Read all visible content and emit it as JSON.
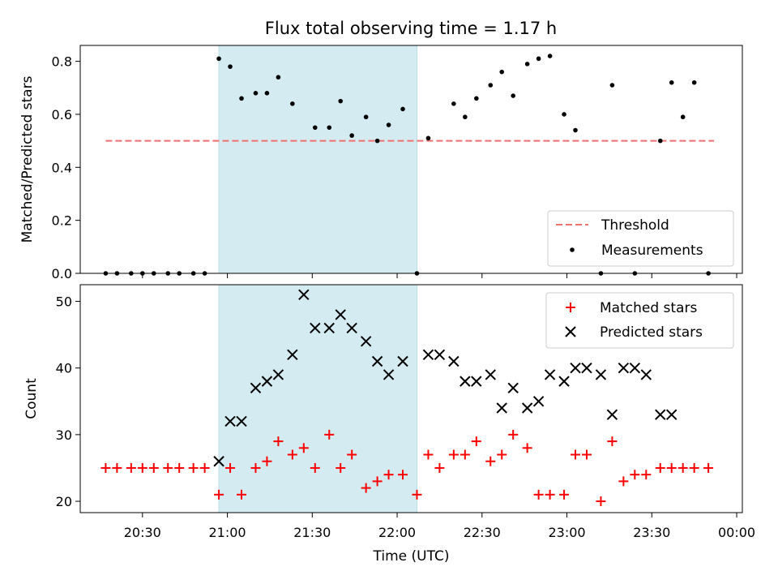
{
  "chart_data": [
    {
      "type": "scatter",
      "title": "Flux total observing time = 1.17 h",
      "xlabel": "",
      "ylabel": "Matched/Predicted stars",
      "ylim": [
        0,
        0.86
      ],
      "yticks": [
        "0.0",
        "0.2",
        "0.4",
        "0.6",
        "0.8"
      ],
      "legend_placement": "lower-right",
      "highlight_span": {
        "start": "20:57",
        "end": "22:07",
        "color": "#d4ebf1"
      },
      "threshold": {
        "name": "Threshold",
        "value": 0.5,
        "x_start": "20:17",
        "x_end": "23:52",
        "color": "#f07070"
      },
      "series": [
        {
          "name": "Measurements",
          "color": "#000000",
          "marker": "dot",
          "x": [
            "20:17",
            "20:21",
            "20:26",
            "20:30",
            "20:34",
            "20:39",
            "20:43",
            "20:48",
            "20:52",
            "20:57",
            "21:01",
            "21:05",
            "21:10",
            "21:14",
            "21:18",
            "21:23",
            "21:31",
            "21:36",
            "21:40",
            "21:44",
            "21:49",
            "21:53",
            "21:57",
            "22:02",
            "22:07",
            "22:11",
            "22:20",
            "22:24",
            "22:28",
            "22:33",
            "22:37",
            "22:41",
            "22:46",
            "22:50",
            "22:54",
            "22:59",
            "23:03",
            "23:12",
            "23:16",
            "23:24",
            "23:33",
            "23:37",
            "23:41",
            "23:45",
            "23:50"
          ],
          "y": [
            0,
            0,
            0,
            0,
            0,
            0,
            0,
            0,
            0,
            0.81,
            0.78,
            0.66,
            0.68,
            0.68,
            0.74,
            0.64,
            0.55,
            0.55,
            0.65,
            0.52,
            0.59,
            0.5,
            0.56,
            0.62,
            0,
            0.51,
            0.64,
            0.59,
            0.66,
            0.71,
            0.76,
            0.67,
            0.79,
            0.81,
            0.82,
            0.6,
            0.54,
            0,
            0.71,
            0,
            0.5,
            0.72,
            0.59,
            0.72,
            0
          ]
        }
      ]
    },
    {
      "type": "scatter",
      "xlabel": "Time (UTC)",
      "ylabel": "Count",
      "ylim": [
        18.3,
        52.5
      ],
      "yticks": [
        "20",
        "30",
        "40",
        "50"
      ],
      "xlim": [
        "20:08",
        "00:02"
      ],
      "xticks": [
        "20:30",
        "21:00",
        "21:30",
        "22:00",
        "22:30",
        "23:00",
        "23:30",
        "00:00"
      ],
      "legend_placement": "upper-right",
      "highlight_span": {
        "start": "20:57",
        "end": "22:07",
        "color": "#d4ebf1"
      },
      "series": [
        {
          "name": "Matched stars",
          "color": "#ff0000",
          "marker": "plus",
          "x": [
            "20:17",
            "20:21",
            "20:26",
            "20:30",
            "20:34",
            "20:39",
            "20:43",
            "20:48",
            "20:52",
            "20:57",
            "21:01",
            "21:05",
            "21:10",
            "21:14",
            "21:18",
            "21:23",
            "21:27",
            "21:31",
            "21:36",
            "21:40",
            "21:44",
            "21:49",
            "21:53",
            "21:57",
            "22:02",
            "22:07",
            "22:11",
            "22:15",
            "22:20",
            "22:24",
            "22:28",
            "22:33",
            "22:37",
            "22:41",
            "22:46",
            "22:50",
            "22:54",
            "22:59",
            "23:03",
            "23:07",
            "23:12",
            "23:16",
            "23:20",
            "23:24",
            "23:28",
            "23:33",
            "23:37",
            "23:41",
            "23:45",
            "23:50"
          ],
          "y": [
            25,
            25,
            25,
            25,
            25,
            25,
            25,
            25,
            25,
            21,
            25,
            21,
            25,
            26,
            29,
            27,
            28,
            25,
            30,
            25,
            27,
            22,
            23,
            24,
            24,
            21,
            27,
            25,
            27,
            27,
            29,
            26,
            27,
            30,
            28,
            21,
            21,
            21,
            27,
            27,
            20,
            29,
            23,
            24,
            24,
            25,
            25,
            25,
            25,
            25
          ]
        },
        {
          "name": "Predicted stars",
          "color": "#000000",
          "marker": "x",
          "x": [
            "20:57",
            "21:01",
            "21:05",
            "21:10",
            "21:14",
            "21:18",
            "21:23",
            "21:27",
            "21:31",
            "21:36",
            "21:40",
            "21:44",
            "21:49",
            "21:53",
            "21:57",
            "22:02",
            "22:11",
            "22:15",
            "22:20",
            "22:24",
            "22:28",
            "22:33",
            "22:37",
            "22:41",
            "22:46",
            "22:50",
            "22:54",
            "22:59",
            "23:03",
            "23:07",
            "23:12",
            "23:16",
            "23:20",
            "23:24",
            "23:28",
            "23:33",
            "23:37"
          ],
          "y": [
            26,
            32,
            32,
            37,
            38,
            39,
            42,
            51,
            46,
            46,
            48,
            46,
            44,
            41,
            39,
            41,
            42,
            42,
            41,
            38,
            38,
            39,
            34,
            37,
            34,
            35,
            39,
            38,
            40,
            40,
            39,
            33,
            40,
            40,
            39,
            33,
            33
          ]
        }
      ]
    }
  ]
}
